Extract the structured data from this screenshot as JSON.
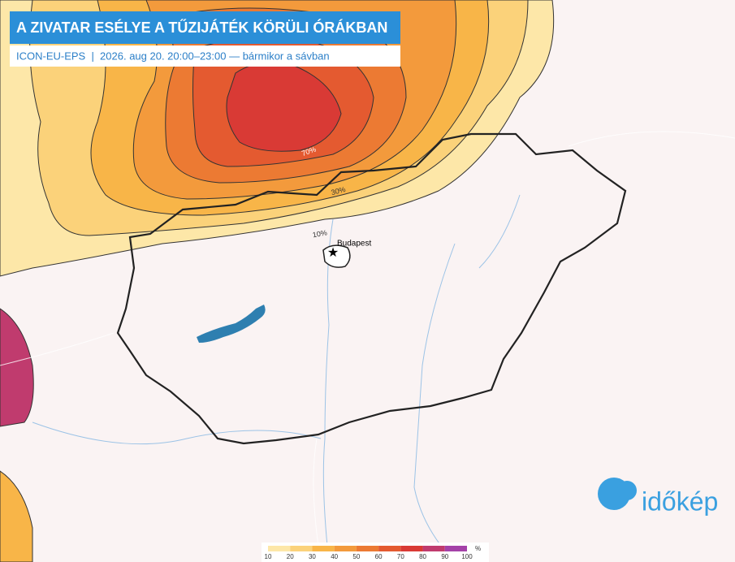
{
  "header": {
    "title": "A ZIVATAR ESÉLYE A TŰZIJÁTÉK KÖRÜLI ÓRÁKBAN",
    "subtitle": "ICON-EU-EPS  |  2026. aug 20. 20:00–23:00 — bármikor a sávban"
  },
  "contour_labels": [
    "70%",
    "30%",
    "10%"
  ],
  "place": "Budapest",
  "legend": {
    "unit": "%",
    "ticks": [
      10,
      20,
      30,
      40,
      50,
      60,
      70,
      80,
      90,
      100
    ],
    "colors": [
      "#fde7a8",
      "#fbd27a",
      "#f8b548",
      "#f39a3c",
      "#ec7a33",
      "#e45a30",
      "#d93a35",
      "#c03b6e",
      "#a441a8"
    ]
  },
  "logo": "időkép"
}
